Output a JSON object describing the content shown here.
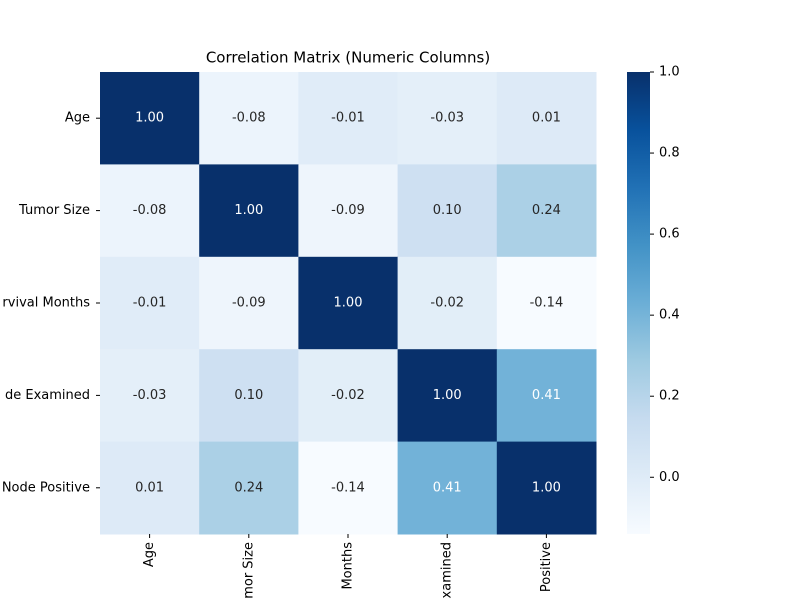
{
  "chart_data": {
    "type": "heatmap",
    "title": "Correlation Matrix (Numeric Columns)",
    "x_categories": [
      "Age",
      "mor Size",
      "Months",
      "xamined",
      "Positive"
    ],
    "y_categories": [
      "Age",
      "Tumor Size",
      "rvival Months",
      "de Examined",
      "Node Positive"
    ],
    "values": [
      [
        1.0,
        -0.08,
        -0.01,
        -0.03,
        0.01
      ],
      [
        -0.08,
        1.0,
        -0.09,
        0.1,
        0.24
      ],
      [
        -0.01,
        -0.09,
        1.0,
        -0.02,
        -0.14
      ],
      [
        -0.03,
        0.1,
        -0.02,
        1.0,
        0.41
      ],
      [
        0.01,
        0.24,
        -0.14,
        0.41,
        1.0
      ]
    ],
    "value_labels": [
      [
        "1.00",
        "-0.08",
        "-0.01",
        "-0.03",
        "0.01"
      ],
      [
        "-0.08",
        "1.00",
        "-0.09",
        "0.10",
        "0.24"
      ],
      [
        "-0.01",
        "-0.09",
        "1.00",
        "-0.02",
        "-0.14"
      ],
      [
        "-0.03",
        "0.10",
        "-0.02",
        "1.00",
        "0.41"
      ],
      [
        "0.01",
        "0.24",
        "-0.14",
        "0.41",
        "1.00"
      ]
    ],
    "colors": [
      "#f7fbff",
      "#deebf7",
      "#c6dbef",
      "#9ecae1",
      "#6baed6",
      "#4292c6",
      "#2171b5",
      "#08519c",
      "#08306b"
    ],
    "clim": [
      -0.14,
      1.0
    ],
    "cticks": [
      {
        "value": 0.0,
        "label": "0.0"
      },
      0.2,
      0.4,
      0.6,
      0.8,
      {
        "value": 1.0,
        "label": "1.0"
      }
    ]
  }
}
